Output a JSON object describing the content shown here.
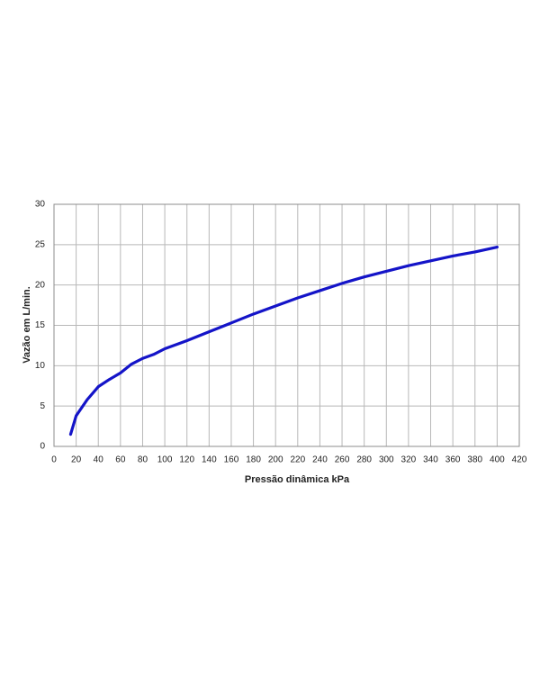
{
  "chart_data": {
    "type": "line",
    "xlabel": "Pressão dinâmica kPa",
    "ylabel": "Vazão em L/min.",
    "x": [
      15,
      20,
      30,
      40,
      50,
      60,
      70,
      80,
      90,
      100,
      120,
      140,
      160,
      180,
      200,
      220,
      240,
      260,
      280,
      300,
      320,
      340,
      360,
      380,
      400
    ],
    "values": [
      1.5,
      3.8,
      5.8,
      7.4,
      8.3,
      9.1,
      10.2,
      10.9,
      11.4,
      12.1,
      13.1,
      14.2,
      15.3,
      16.4,
      17.4,
      18.4,
      19.3,
      20.2,
      21.0,
      21.7,
      22.4,
      23.0,
      23.6,
      24.1,
      24.7
    ],
    "color": "#1414c8",
    "xlim": [
      0,
      420
    ],
    "xticks": [
      0,
      20,
      40,
      60,
      80,
      100,
      120,
      140,
      160,
      180,
      200,
      220,
      240,
      260,
      280,
      300,
      320,
      340,
      360,
      380,
      400,
      420
    ],
    "ylim": [
      0,
      30
    ],
    "yticks": [
      0,
      5,
      10,
      15,
      20,
      25,
      30
    ],
    "grid": true
  }
}
